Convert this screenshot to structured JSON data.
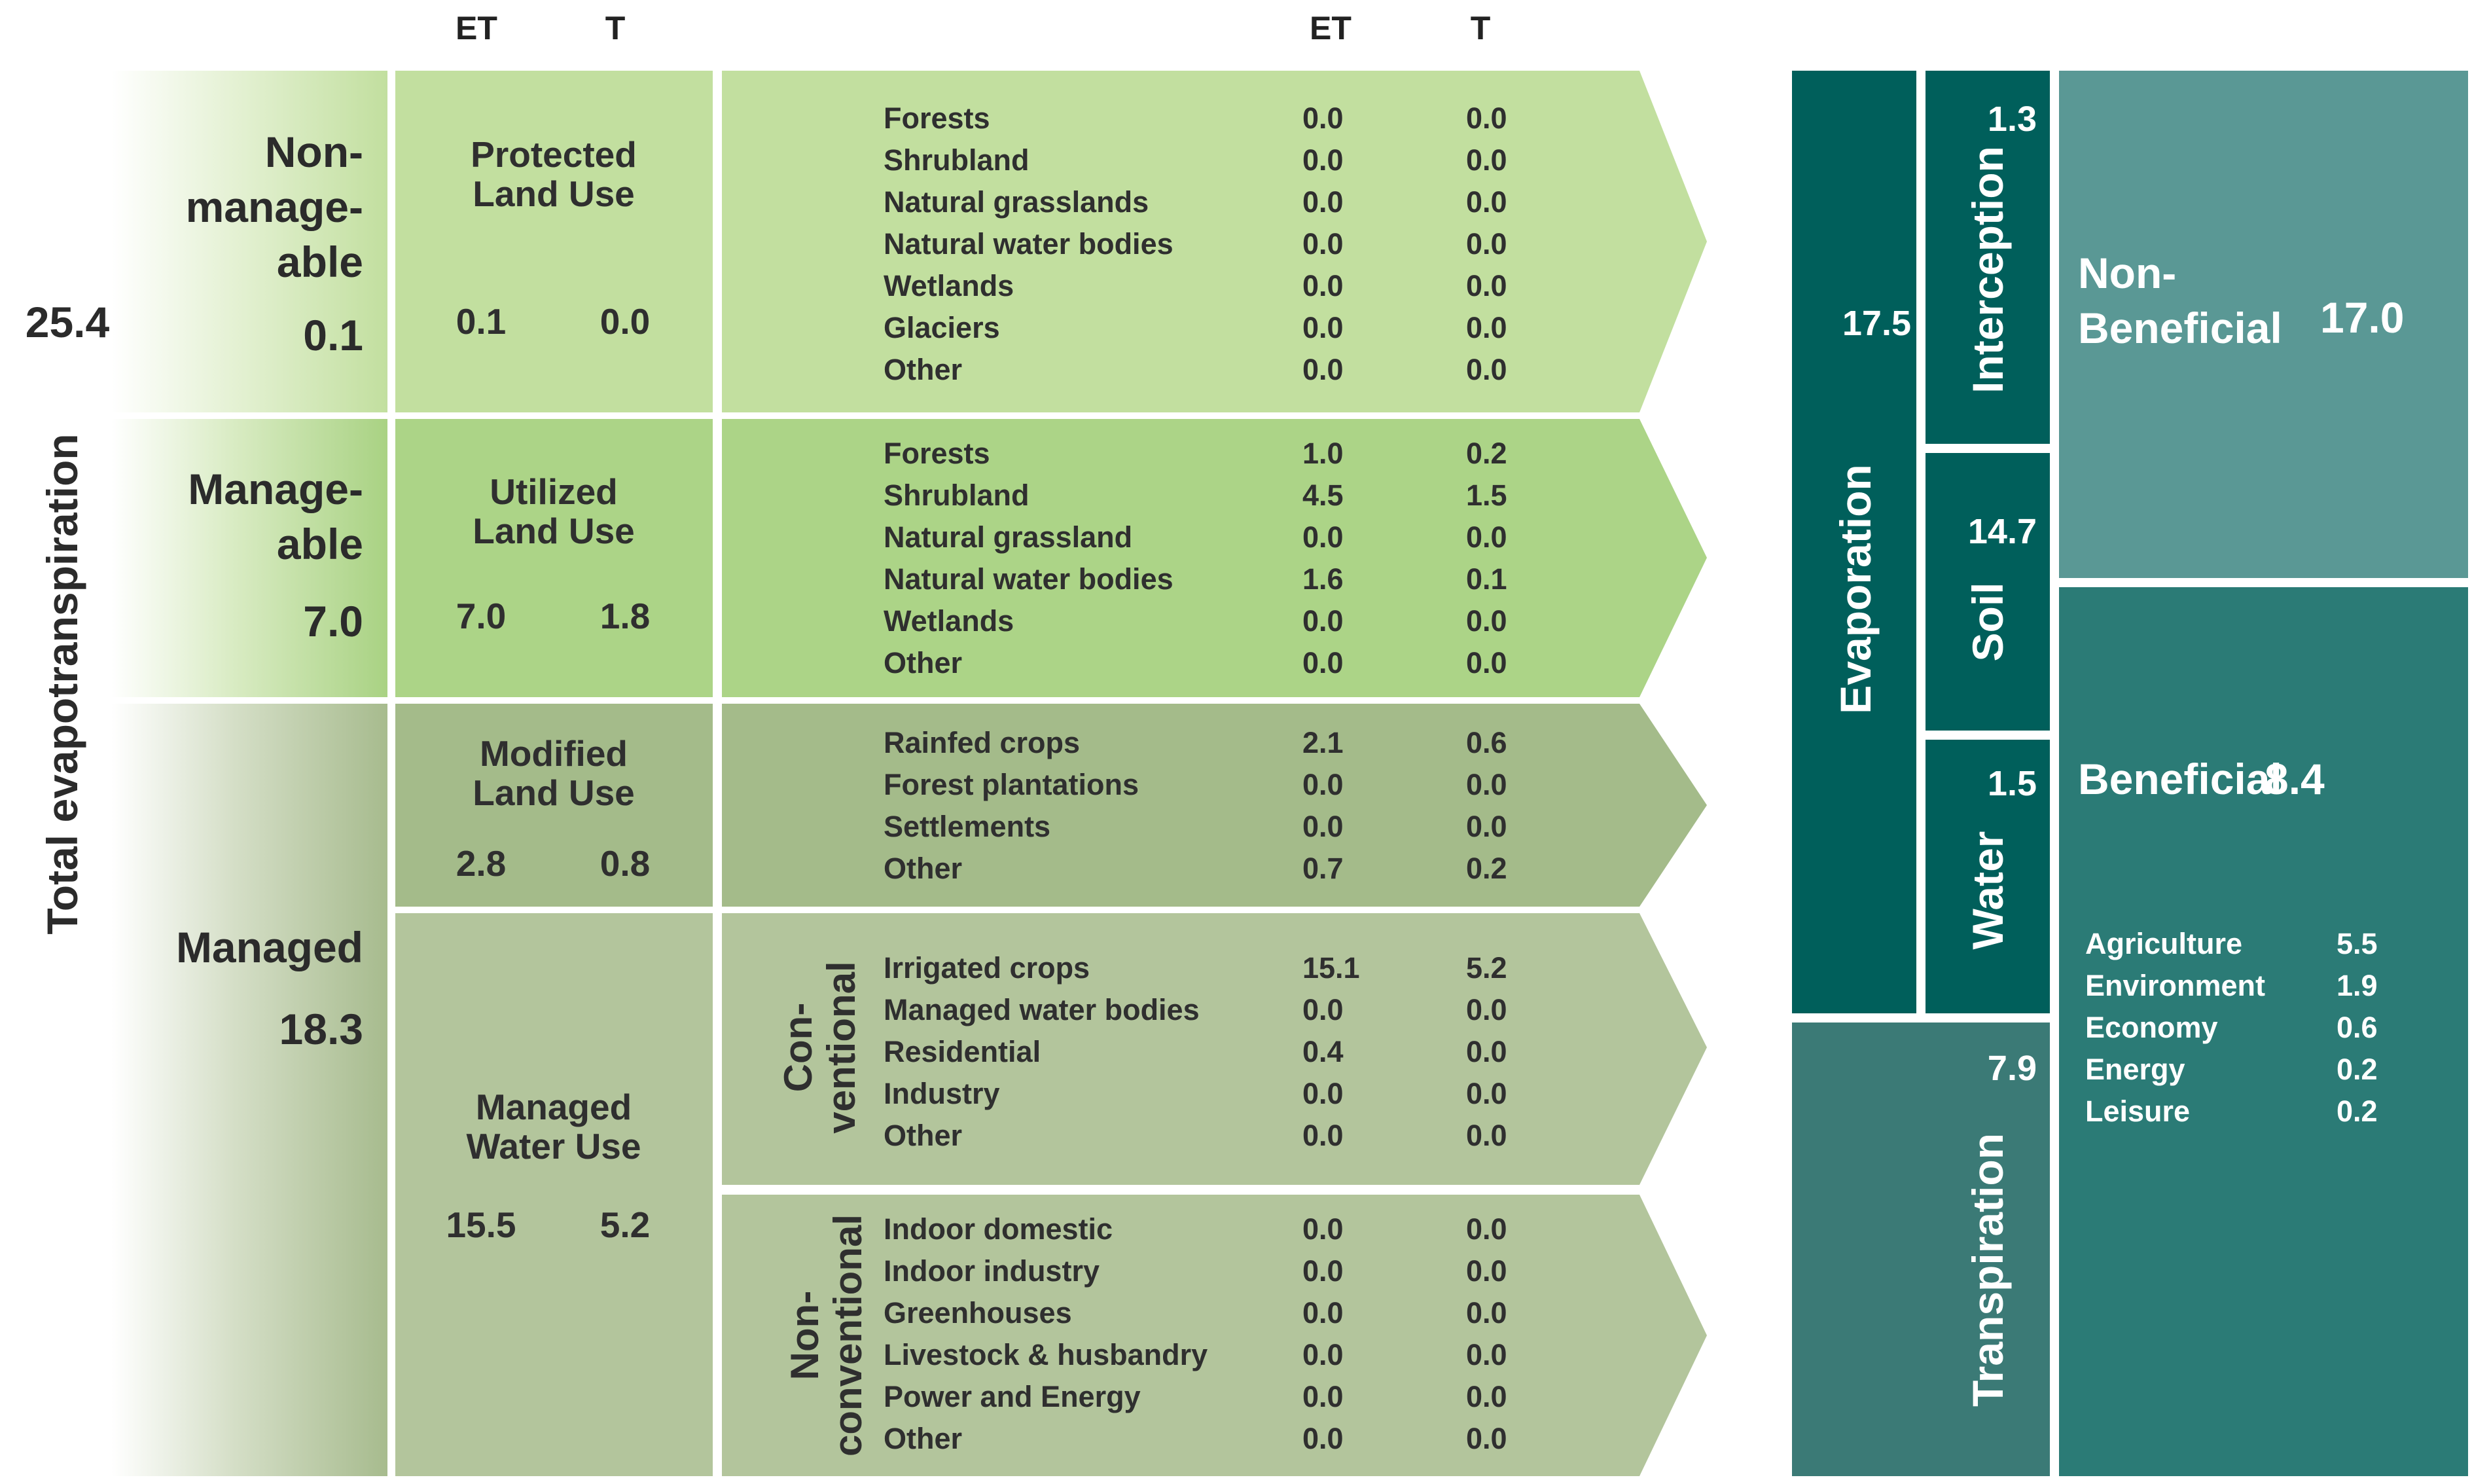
{
  "headers": {
    "et": "ET",
    "t": "T"
  },
  "total": {
    "label": "Total evapotranspiration",
    "value": "25.4"
  },
  "categories": [
    {
      "label": "Non-\nmanage-\nable",
      "value": "0.1"
    },
    {
      "label": "Manage-\nable",
      "value": "7.0"
    },
    {
      "label": "Managed",
      "value": "18.3"
    }
  ],
  "uses": [
    {
      "label": "Protected\nLand Use",
      "et": "0.1",
      "t": "0.0"
    },
    {
      "label": "Utilized\nLand Use",
      "et": "7.0",
      "t": "1.8"
    },
    {
      "label": "Modified\nLand Use",
      "et": "2.8",
      "t": "0.8"
    },
    {
      "label": "Managed\nWater Use",
      "et": "15.5",
      "t": "5.2"
    }
  ],
  "groups": [
    {
      "sublabel": "",
      "rows": [
        [
          "Forests",
          "0.0",
          "0.0"
        ],
        [
          "Shrubland",
          "0.0",
          "0.0"
        ],
        [
          "Natural grasslands",
          "0.0",
          "0.0"
        ],
        [
          "Natural water bodies",
          "0.0",
          "0.0"
        ],
        [
          "Wetlands",
          "0.0",
          "0.0"
        ],
        [
          "Glaciers",
          "0.0",
          "0.0"
        ],
        [
          "Other",
          "0.0",
          "0.0"
        ]
      ]
    },
    {
      "sublabel": "",
      "rows": [
        [
          "Forests",
          "1.0",
          "0.2"
        ],
        [
          "Shrubland",
          "4.5",
          "1.5"
        ],
        [
          "Natural grassland",
          "0.0",
          "0.0"
        ],
        [
          "Natural water bodies",
          "1.6",
          "0.1"
        ],
        [
          "Wetlands",
          "0.0",
          "0.0"
        ],
        [
          "Other",
          "0.0",
          "0.0"
        ]
      ]
    },
    {
      "sublabel": "",
      "rows": [
        [
          "Rainfed crops",
          "2.1",
          "0.6"
        ],
        [
          "Forest plantations",
          "0.0",
          "0.0"
        ],
        [
          "Settlements",
          "0.0",
          "0.0"
        ],
        [
          "Other",
          "0.7",
          "0.2"
        ]
      ]
    },
    {
      "sublabel": "Con-\nventional",
      "rows": [
        [
          "Irrigated crops",
          "15.1",
          "5.2"
        ],
        [
          "Managed water bodies",
          "0.0",
          "0.0"
        ],
        [
          "Residential",
          "0.4",
          "0.0"
        ],
        [
          "Industry",
          "0.0",
          "0.0"
        ],
        [
          "Other",
          "0.0",
          "0.0"
        ]
      ]
    },
    {
      "sublabel": "Non-\nconventional",
      "rows": [
        [
          "Indoor domestic",
          "0.0",
          "0.0"
        ],
        [
          "Indoor industry",
          "0.0",
          "0.0"
        ],
        [
          "Greenhouses",
          "0.0",
          "0.0"
        ],
        [
          "Livestock & husbandry",
          "0.0",
          "0.0"
        ],
        [
          "Power and Energy",
          "0.0",
          "0.0"
        ],
        [
          "Other",
          "0.0",
          "0.0"
        ]
      ]
    }
  ],
  "evaporation": {
    "label": "Evaporation",
    "value": "17.5"
  },
  "components": [
    {
      "label": "Interception",
      "value": "1.3"
    },
    {
      "label": "Soil",
      "value": "14.7"
    },
    {
      "label": "Water",
      "value": "1.5"
    }
  ],
  "transpiration": {
    "label": "Transpiration",
    "value": "7.9"
  },
  "non_beneficial": {
    "label": "Non-\nBeneficial",
    "value": "17.0"
  },
  "beneficial": {
    "label": "Beneficial",
    "value": "8.4",
    "items": [
      [
        "Agriculture",
        "5.5"
      ],
      [
        "Environment",
        "1.9"
      ],
      [
        "Economy",
        "0.6"
      ],
      [
        "Energy",
        "0.2"
      ],
      [
        "Leisure",
        "0.2"
      ]
    ]
  },
  "colors": {
    "nonmanage": "#c2df9f",
    "manage": "#acd487",
    "modified": "#a4bb8a",
    "managed": "#b3c59c",
    "evap": "#005f5b",
    "transp": "#3b7a76",
    "nonben": "#5a9895",
    "ben": "#2b7b76"
  }
}
